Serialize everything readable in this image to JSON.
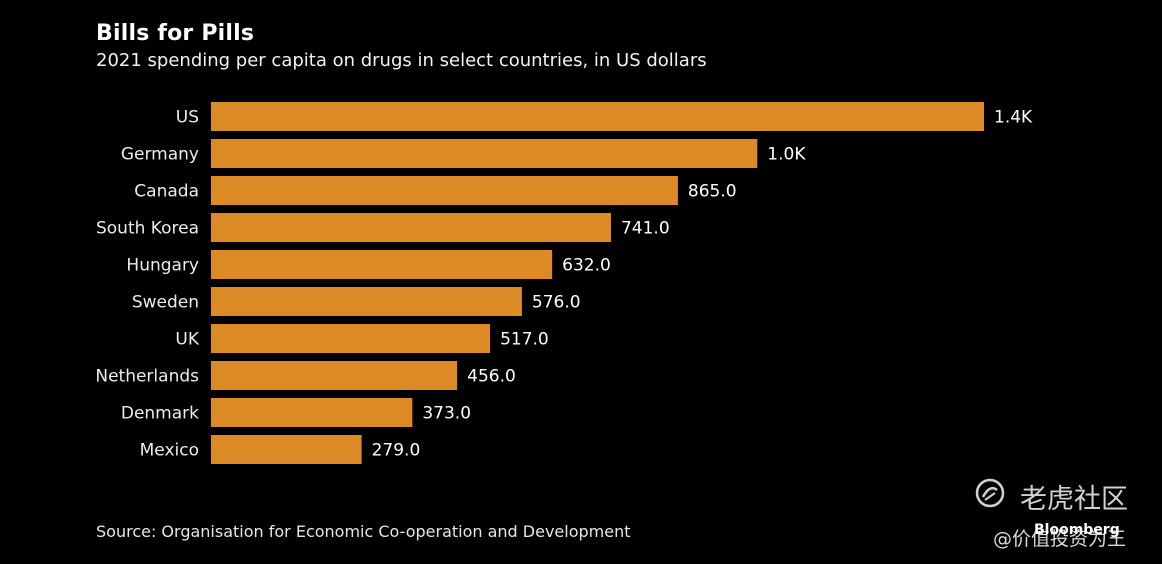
{
  "chart_data": {
    "type": "bar",
    "orientation": "horizontal",
    "title": "Bills for Pills",
    "subtitle": "2021 spending per capita on drugs in select countries, in US dollars",
    "categories": [
      "US",
      "Germany",
      "Canada",
      "South Korea",
      "Hungary",
      "Sweden",
      "UK",
      "Netherlands",
      "Denmark",
      "Mexico"
    ],
    "values": [
      1432,
      1012,
      865,
      741,
      632,
      576,
      517,
      456,
      373,
      279
    ],
    "value_labels": [
      "1.4K",
      "1.0K",
      "865.0",
      "741.0",
      "632.0",
      "576.0",
      "517.0",
      "456.0",
      "373.0",
      "279.0"
    ],
    "xlim": [
      0,
      1432
    ],
    "bar_color": "#db8a26",
    "grid": false,
    "source": "Source: Organisation for Economic Co-operation and Development"
  },
  "brand": "Bloomberg",
  "watermark": {
    "name": "老虎社区",
    "sub": "@价值投资为王",
    "icon": "tiger-logo-icon"
  },
  "colors": {
    "background": "#000000",
    "text": "#ffffff"
  }
}
